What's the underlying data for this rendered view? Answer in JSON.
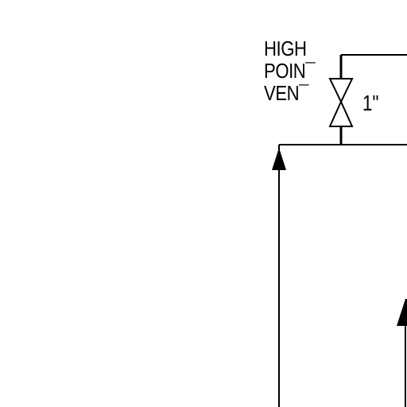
{
  "diagram": {
    "vent_label": {
      "line1": "HIGH",
      "line2": "POIN¯",
      "line3": "VEN¯"
    },
    "valve_size": "1\""
  },
  "colors": {
    "line": "#000000",
    "background": "#ffffff"
  }
}
